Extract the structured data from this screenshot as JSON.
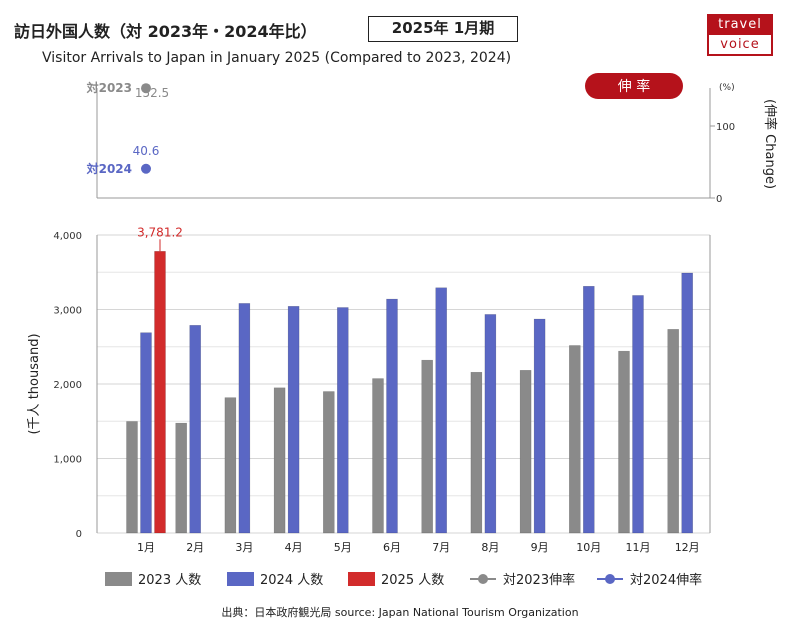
{
  "header": {
    "title_jp": "訪日外国人数（対 2023年・2024年比）",
    "period": "2025年 1月期",
    "title_en": "Visitor Arrivals to Japan in January 2025 (Compared to 2023, 2024)"
  },
  "logo": {
    "top": "travel",
    "bottom": "voice"
  },
  "source": "出典：日本政府観光局  source: Japan National Tourism Organization",
  "colors": {
    "y2023": "#8a8a8a",
    "y2024": "#5a67c4",
    "y2025": "#d22b2b",
    "accent": "#b5121b"
  },
  "chart_data": [
    {
      "type": "scatter",
      "badge": "伸 率",
      "ylabel": "(伸率 Change)",
      "unit_label": "(%)",
      "yticks": [
        0,
        100
      ],
      "series": [
        {
          "name": "対2023伸率",
          "label": "対2023",
          "points": [
            {
              "x": "1月",
              "y": 152.5,
              "label": "152.5"
            }
          ]
        },
        {
          "name": "対2024伸率",
          "label": "対2024",
          "points": [
            {
              "x": "1月",
              "y": 40.6,
              "label": "40.6"
            }
          ]
        }
      ]
    },
    {
      "type": "bar",
      "ylabel": "(千人 thousand)",
      "ylim": [
        0,
        4000
      ],
      "yticks": [
        "0",
        "1,000",
        "2,000",
        "3,000",
        "4,000"
      ],
      "categories": [
        "1月",
        "2月",
        "3月",
        "4月",
        "5月",
        "6月",
        "7月",
        "8月",
        "9月",
        "10月",
        "11月",
        "12月"
      ],
      "grid": true,
      "series": [
        {
          "name": "2023 人数",
          "values": [
            1497,
            1475,
            1817,
            1949,
            1899,
            2073,
            2320,
            2158,
            2184,
            2517,
            2441,
            2734
          ]
        },
        {
          "name": "2024 人数",
          "values": [
            2689,
            2788,
            3082,
            3043,
            3027,
            3140,
            3292,
            2934,
            2872,
            3312,
            3189,
            3490
          ]
        },
        {
          "name": "2025 人数",
          "values": [
            3781.2,
            null,
            null,
            null,
            null,
            null,
            null,
            null,
            null,
            null,
            null,
            null
          ]
        }
      ],
      "data_labels": [
        {
          "series": "2025 人数",
          "category": "1月",
          "text": "3,781.2"
        }
      ]
    }
  ],
  "legend": [
    {
      "label": "2023 人数",
      "kind": "bar",
      "color": "#8a8a8a"
    },
    {
      "label": "2024 人数",
      "kind": "bar",
      "color": "#5a67c4"
    },
    {
      "label": "2025 人数",
      "kind": "bar",
      "color": "#d22b2b"
    },
    {
      "label": "対2023伸率",
      "kind": "line",
      "color": "#8a8a8a"
    },
    {
      "label": "対2024伸率",
      "kind": "line",
      "color": "#5a67c4"
    }
  ]
}
